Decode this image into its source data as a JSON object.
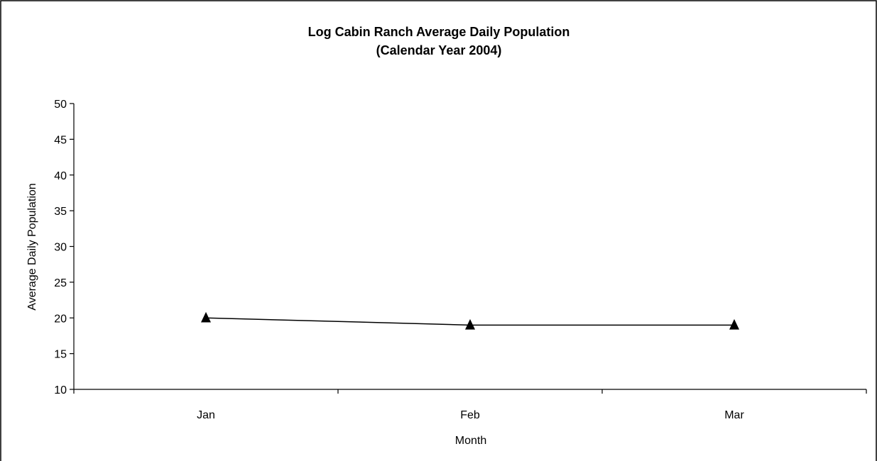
{
  "chart_data": {
    "type": "line",
    "title": "Log Cabin Ranch Average Daily Population",
    "subtitle": "(Calendar Year 2004)",
    "xlabel": "Month",
    "ylabel": "Average Daily Population",
    "categories": [
      "Jan",
      "Feb",
      "Mar"
    ],
    "series": [
      {
        "values": [
          20,
          19,
          19
        ],
        "marker": "triangle",
        "color": "#000000"
      }
    ],
    "ylim": [
      10,
      50
    ],
    "yticks": [
      10,
      15,
      20,
      25,
      30,
      35,
      40,
      45,
      50
    ],
    "grid": false,
    "legend": "none"
  }
}
